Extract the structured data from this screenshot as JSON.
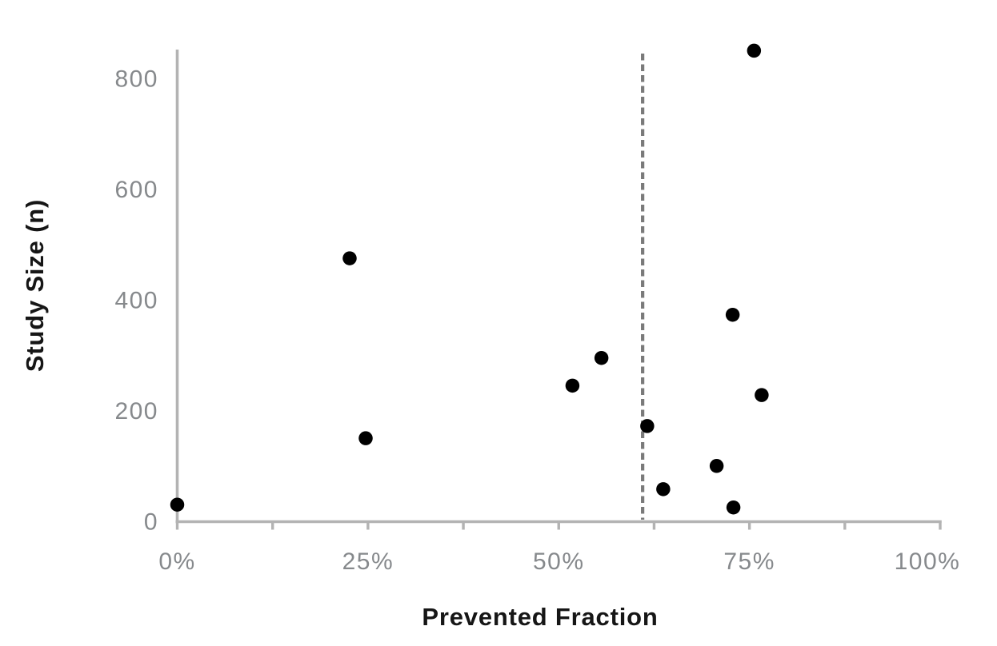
{
  "chart_data": {
    "type": "scatter",
    "title": "",
    "xlabel": "Prevented Fraction",
    "ylabel": "Study Size (n)",
    "x_axis": {
      "unit": "%",
      "xlim_pct": [
        0,
        100
      ],
      "major_ticks_pct": [
        0,
        25,
        50,
        75,
        100
      ],
      "minor_ticks_pct": [
        12.5,
        37.5,
        62.5,
        87.5
      ],
      "tick_labels": [
        "0%",
        "25%",
        "50%",
        "75%",
        "100%"
      ]
    },
    "y_axis": {
      "ylim": [
        0,
        852
      ],
      "ticks": [
        0,
        200,
        400,
        600,
        800
      ],
      "tick_labels": [
        "0",
        "200",
        "400",
        "600",
        "800"
      ]
    },
    "reference_line": {
      "x_pct": 61,
      "style": "dashed",
      "orientation": "vertical"
    },
    "points": [
      {
        "x_pct": 0.0,
        "y": 30
      },
      {
        "x_pct": 22.6,
        "y": 475
      },
      {
        "x_pct": 24.7,
        "y": 150
      },
      {
        "x_pct": 51.8,
        "y": 245
      },
      {
        "x_pct": 55.6,
        "y": 295
      },
      {
        "x_pct": 61.6,
        "y": 172
      },
      {
        "x_pct": 63.7,
        "y": 58
      },
      {
        "x_pct": 70.7,
        "y": 100
      },
      {
        "x_pct": 72.8,
        "y": 373
      },
      {
        "x_pct": 72.9,
        "y": 25
      },
      {
        "x_pct": 75.6,
        "y": 850
      },
      {
        "x_pct": 76.6,
        "y": 228
      }
    ],
    "grid": false,
    "legend": "none",
    "colors": {
      "point": "#000000",
      "axis": "#b3b3b3",
      "tick_label": "#86898c",
      "axis_title": "#161616",
      "reference_line": "#7a7a7a",
      "background": "#ffffff"
    }
  }
}
